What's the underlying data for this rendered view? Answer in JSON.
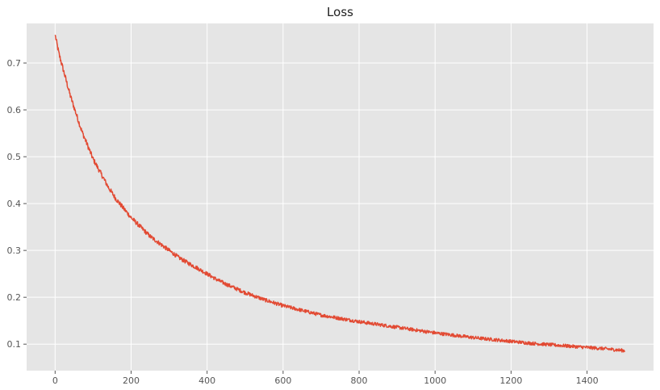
{
  "chart_data": {
    "type": "line",
    "title": "Loss",
    "xlabel": "",
    "ylabel": "",
    "xlim": [
      -75,
      1575
    ],
    "ylim": [
      0.0435,
      0.7845
    ],
    "x_ticks": [
      0,
      200,
      400,
      600,
      800,
      1000,
      1200,
      1400
    ],
    "y_ticks": [
      0.1,
      0.2,
      0.3,
      0.4,
      0.5,
      0.6,
      0.7
    ],
    "grid": true,
    "legend": "none",
    "colors": {
      "background": "#e5e5e5",
      "grid": "#ffffff",
      "line": "#e24a33"
    },
    "series": [
      {
        "x": [
          0,
          10,
          20,
          30,
          40,
          50,
          60,
          70,
          80,
          90,
          100,
          120,
          140,
          160,
          180,
          200,
          225,
          250,
          275,
          300,
          325,
          350,
          375,
          400,
          425,
          450,
          475,
          500,
          550,
          600,
          650,
          700,
          750,
          800,
          850,
          900,
          950,
          1000,
          1050,
          1100,
          1150,
          1200,
          1250,
          1300,
          1350,
          1400,
          1450,
          1500
        ],
        "y": [
          0.76,
          0.72,
          0.69,
          0.66,
          0.63,
          0.605,
          0.58,
          0.555,
          0.535,
          0.515,
          0.495,
          0.465,
          0.435,
          0.41,
          0.39,
          0.37,
          0.35,
          0.33,
          0.315,
          0.3,
          0.285,
          0.273,
          0.262,
          0.25,
          0.238,
          0.228,
          0.219,
          0.21,
          0.195,
          0.182,
          0.172,
          0.162,
          0.155,
          0.148,
          0.142,
          0.136,
          0.13,
          0.124,
          0.119,
          0.114,
          0.11,
          0.106,
          0.102,
          0.099,
          0.096,
          0.093,
          0.09,
          0.086
        ]
      }
    ]
  }
}
